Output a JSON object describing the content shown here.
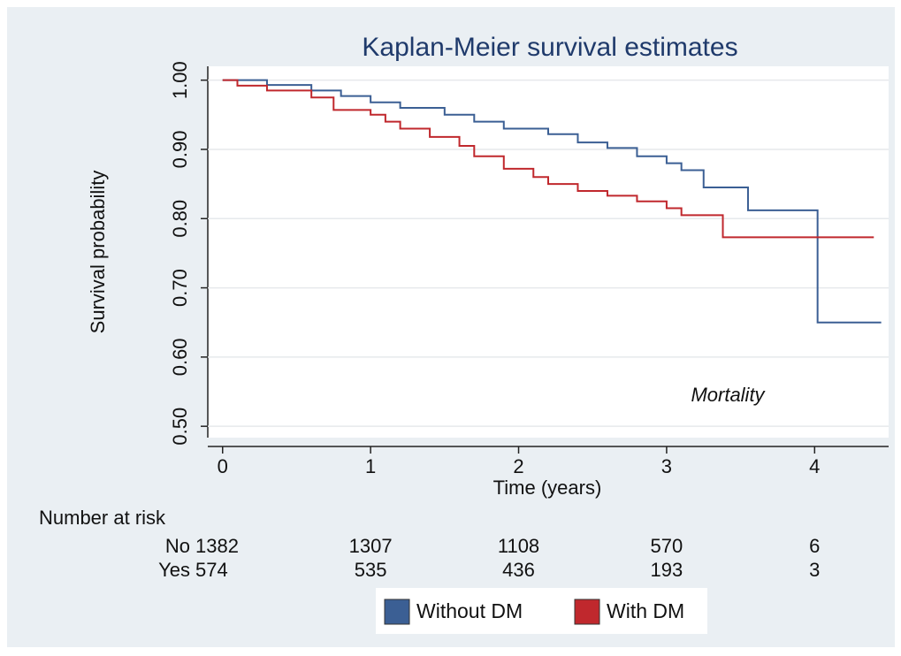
{
  "chart_data": {
    "type": "line",
    "title": "Kaplan-Meier survival estimates",
    "x_label": "Time (years)",
    "y_label": "Survival probability",
    "annotation": "Mortality",
    "xlim": [
      -0.1,
      4.5
    ],
    "ylim": [
      0.49,
      1.02
    ],
    "xticks": [
      0,
      1,
      2,
      3,
      4
    ],
    "yticks": [
      {
        "value": 0.5,
        "label": "0.50"
      },
      {
        "value": 0.6,
        "label": "0.60"
      },
      {
        "value": 0.7,
        "label": "0.70"
      },
      {
        "value": 0.8,
        "label": "0.80"
      },
      {
        "value": 0.9,
        "label": "0.90"
      },
      {
        "value": 1,
        "label": "1.00"
      }
    ],
    "grid": true,
    "legend": "bottom",
    "series": [
      {
        "name": "Without DM",
        "color": "#3b5f94",
        "x": [
          0,
          0.3,
          0.3,
          0.6,
          0.6,
          0.8,
          0.8,
          1.0,
          1.0,
          1.2,
          1.2,
          1.5,
          1.5,
          1.7,
          1.7,
          1.9,
          1.9,
          2.2,
          2.2,
          2.4,
          2.4,
          2.6,
          2.6,
          2.8,
          2.8,
          3.0,
          3.0,
          3.1,
          3.1,
          3.25,
          3.25,
          3.55,
          3.55,
          4.02,
          4.02,
          4.45
        ],
        "values": [
          1.0,
          1.0,
          0.993,
          0.993,
          0.985,
          0.985,
          0.977,
          0.977,
          0.968,
          0.968,
          0.96,
          0.96,
          0.95,
          0.95,
          0.94,
          0.94,
          0.93,
          0.93,
          0.922,
          0.922,
          0.91,
          0.91,
          0.902,
          0.902,
          0.89,
          0.89,
          0.88,
          0.88,
          0.87,
          0.87,
          0.845,
          0.845,
          0.812,
          0.812,
          0.65,
          0.65
        ]
      },
      {
        "name": "With DM",
        "color": "#c0282d",
        "x": [
          0,
          0.1,
          0.1,
          0.3,
          0.3,
          0.6,
          0.6,
          0.75,
          0.75,
          1.0,
          1.0,
          1.1,
          1.1,
          1.2,
          1.2,
          1.4,
          1.4,
          1.6,
          1.6,
          1.7,
          1.7,
          1.9,
          1.9,
          2.1,
          2.1,
          2.2,
          2.2,
          2.4,
          2.4,
          2.6,
          2.6,
          2.8,
          2.8,
          3.0,
          3.0,
          3.1,
          3.1,
          3.38,
          3.38,
          4.4
        ],
        "values": [
          1.0,
          1.0,
          0.992,
          0.992,
          0.985,
          0.985,
          0.975,
          0.975,
          0.957,
          0.957,
          0.95,
          0.95,
          0.94,
          0.94,
          0.93,
          0.93,
          0.918,
          0.918,
          0.905,
          0.905,
          0.89,
          0.89,
          0.872,
          0.872,
          0.86,
          0.86,
          0.85,
          0.85,
          0.84,
          0.84,
          0.833,
          0.833,
          0.825,
          0.825,
          0.815,
          0.815,
          0.805,
          0.805,
          0.773,
          0.773
        ]
      }
    ],
    "risk_table": {
      "title": "Number at risk",
      "rows": [
        {
          "label": "No",
          "values": [
            1382,
            1307,
            1108,
            570,
            6
          ]
        },
        {
          "label": "Yes",
          "values": [
            574,
            535,
            436,
            193,
            3
          ]
        }
      ]
    }
  }
}
